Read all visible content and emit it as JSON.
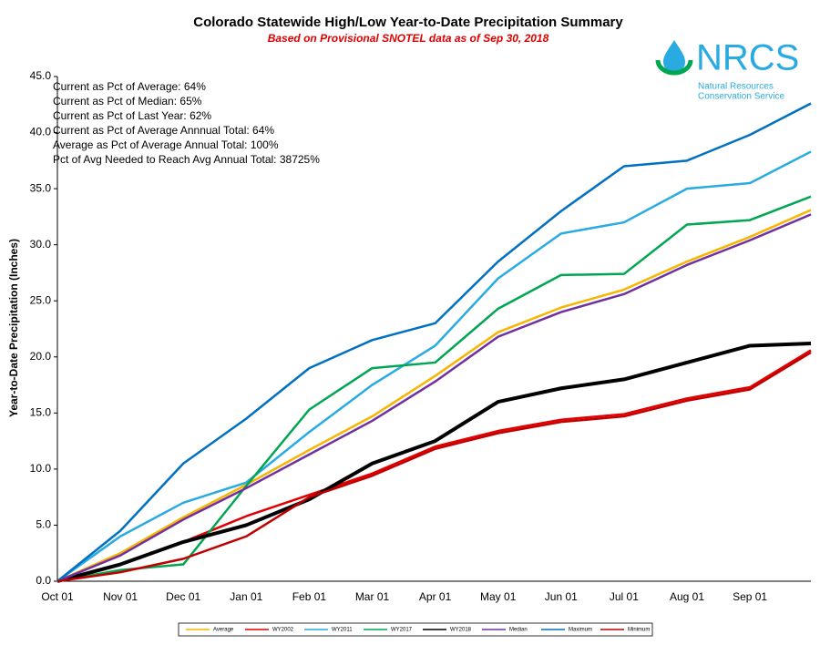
{
  "chart_data": {
    "type": "line",
    "title": "Colorado Statewide High/Low Year-to-Date Precipitation Summary",
    "subtitle": "Based on Provisional SNOTEL data as of Sep 30, 2018",
    "y_label": "Year-to-Date Precipitation (Inches)",
    "annotations": [
      "Current  as Pct of Average:  64%",
      "Current  as Pct of Median: 65%",
      "Current  as Pct of Last Year: 62%",
      "Current  as Pct of Average  Annnual Total: 64%",
      "Average  as Pct of Average Annual Total: 100%",
      "Pct of Avg Needed  to Reach Avg Annual Total: 38725%"
    ],
    "categories": [
      "Oct 01",
      "Nov 01",
      "Dec 01",
      "Jan 01",
      "Feb 01",
      "Mar 01",
      "Apr 01",
      "May 01",
      "Jun 01",
      "Jul 01",
      "Aug 01",
      "Sep 01",
      null
    ],
    "ylim": [
      0,
      45
    ],
    "yticks": [
      {
        "value": 0,
        "label": "0.0"
      },
      {
        "value": 5,
        "label": "5.0"
      },
      {
        "value": 10,
        "label": "10.0"
      },
      {
        "value": 15,
        "label": "15.0"
      },
      {
        "value": 20,
        "label": "20.0"
      },
      {
        "value": 25,
        "label": "25.0"
      },
      {
        "value": 30,
        "label": "30.0"
      },
      {
        "value": 35,
        "label": "35.0"
      },
      {
        "value": 40,
        "label": "40.0"
      },
      {
        "value": 45,
        "label": "45.0"
      }
    ],
    "grid": false,
    "legend": "bottom",
    "series": [
      {
        "name": "Average",
        "color": "#f7b500",
        "values": [
          0,
          2.5,
          5.7,
          8.6,
          11.7,
          14.7,
          18.3,
          22.2,
          24.4,
          26,
          28.5,
          30.7,
          33.1
        ]
      },
      {
        "name": "WY2002",
        "color": "#e00000",
        "values": [
          0,
          1.5,
          3.5,
          5.8,
          7.7,
          9.6,
          12,
          13.4,
          14.4,
          14.9,
          16.3,
          17.3,
          20.6
        ]
      },
      {
        "name": "WY2011",
        "color": "#29abe2",
        "values": [
          0,
          4,
          7,
          8.8,
          13.3,
          17.5,
          21,
          27,
          31,
          32,
          35,
          35.5,
          38.3
        ]
      },
      {
        "name": "WY2017",
        "color": "#00a651",
        "values": [
          0,
          1,
          1.5,
          8.5,
          15.3,
          19,
          19.5,
          24.3,
          27.3,
          27.4,
          31.8,
          32.2,
          34.3
        ]
      },
      {
        "name": "WY2018",
        "color": "#000000",
        "values": [
          0,
          1.5,
          3.5,
          5,
          7.3,
          10.5,
          12.5,
          16,
          17.2,
          18,
          19.5,
          21,
          21.2
        ]
      },
      {
        "name": "Median",
        "color": "#7030a0",
        "values": [
          0,
          2.3,
          5.5,
          8.3,
          11.3,
          14.3,
          17.8,
          21.8,
          24,
          25.6,
          28.2,
          30.4,
          32.7
        ]
      },
      {
        "name": "Maximum",
        "color": "#0070c0",
        "values": [
          0,
          4.5,
          10.5,
          14.5,
          19,
          21.5,
          23,
          28.5,
          33,
          37,
          37.5,
          39.8,
          42.6
        ]
      },
      {
        "name": "Minimum",
        "color": "#c00000",
        "values": [
          0,
          0.8,
          2,
          4,
          7.5,
          9.4,
          11.8,
          13.2,
          14.2,
          14.7,
          16.1,
          17.1,
          20.4
        ]
      }
    ]
  },
  "logo": {
    "text": "NRCS",
    "lines": [
      "Natural Resources",
      "Conservation Service"
    ]
  }
}
